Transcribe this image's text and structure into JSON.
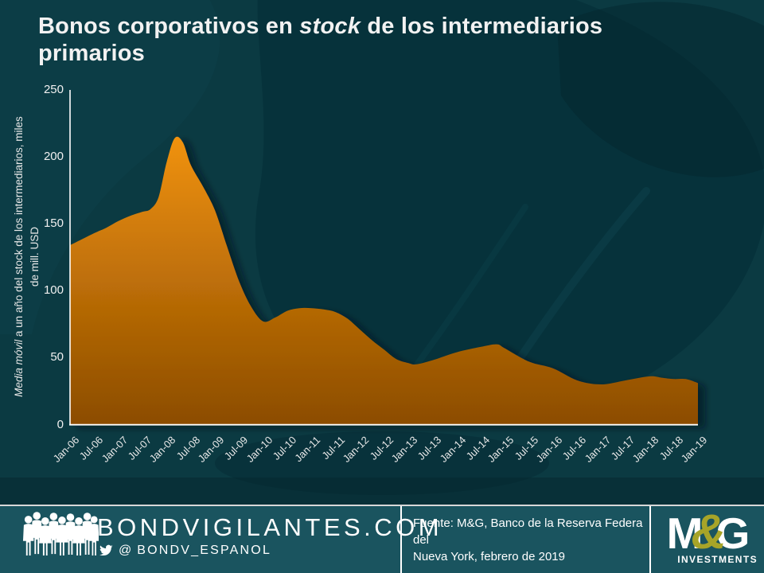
{
  "page": {
    "bg_color": "#0B3A42",
    "title": {
      "prefix": "Bonos corporativos en ",
      "italic": "stock",
      "suffix": " de los intermediarios",
      "line2": "primarios"
    }
  },
  "chart_data": {
    "type": "area",
    "title": "Bonos corporativos en stock de los intermediarios primarios",
    "ylabel": {
      "line1_italic": "Media móvil",
      "line1_rest": " a un año del stock de los intermediarios, miles",
      "line2": "de mill. USD"
    },
    "ylim": [
      0,
      250
    ],
    "yticks": [
      250,
      200,
      150,
      100,
      50,
      0
    ],
    "grid": false,
    "legend": false,
    "categories": [
      "Jan-06",
      "Jul-06",
      "Jan-07",
      "Jul-07",
      "Jan-08",
      "Jul-08",
      "Jan-09",
      "Jul-09",
      "Jan-10",
      "Jul-10",
      "Jan-11",
      "Jul-11",
      "Jan-12",
      "Jul-12",
      "Jan-13",
      "Jul-13",
      "Jan-14",
      "Jul-14",
      "Jan-15",
      "Jul-15",
      "Jan-16",
      "Jul-16",
      "Jan-17",
      "Jul-17",
      "Jan-18",
      "Jul-18",
      "Jan-19"
    ],
    "series": [
      {
        "x_months_since_jan06": [
          0,
          6,
          9,
          12,
          15,
          18,
          20,
          22,
          24,
          26,
          28,
          30,
          33,
          36,
          39,
          42,
          45,
          48,
          51,
          54,
          57,
          60,
          63,
          66,
          69,
          72,
          75,
          78,
          81,
          84,
          86,
          90,
          96,
          102,
          106,
          108,
          114,
          120,
          126,
          132,
          138,
          144,
          147,
          150,
          153,
          156
        ],
        "values": [
          134,
          143,
          147,
          152,
          156,
          159,
          161,
          170,
          196,
          214,
          211,
          194,
          178,
          160,
          133,
          107,
          88,
          77,
          80,
          85,
          87,
          87,
          86,
          84,
          79,
          71,
          63,
          56,
          49,
          46,
          45,
          48,
          54,
          58,
          60,
          57,
          47,
          42,
          33,
          30,
          33,
          36,
          35,
          34,
          34,
          31
        ]
      }
    ],
    "area_gradient": {
      "top": "#F6960F",
      "bottom": "#8A4B00"
    },
    "axis_color": "#FFFFFF"
  },
  "footer": {
    "bg_color": "#1A545F",
    "site": "BONDVIGILANTES.COM",
    "twitter_at": "@",
    "twitter_handle": "BONDV_ESPANOL",
    "source_line1": "Fuente: M&G, Banco de la Reserva Federa del",
    "source_line2": "Nueva York, febrero de 2019",
    "logo_m": "M",
    "logo_amp": "&",
    "logo_g": "G",
    "logo_sub": "INVESTMENTS",
    "logo_amp_color": "#A7A428"
  }
}
